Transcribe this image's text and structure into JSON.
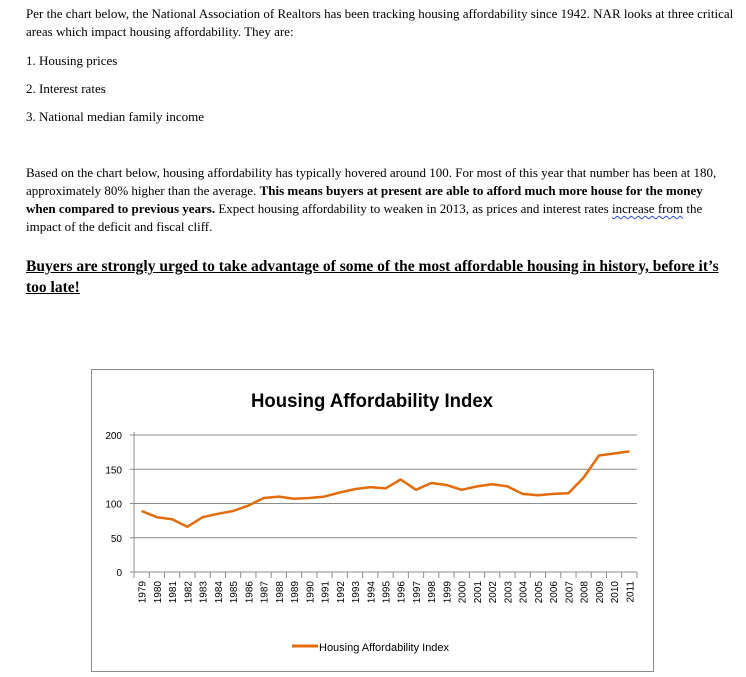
{
  "document": {
    "intro": "Per the chart below, the National Association of Realtors has been tracking housing affordability since 1942. NAR looks at three critical areas which impact housing affordability.  They are:",
    "list": [
      "1. Housing prices",
      "2. Interest rates",
      "3. National median family income"
    ],
    "para2_a": "Based on the chart below, housing affordability has typically hovered around 100.  For most of this year that number has been at 180, approximately 80% higher than the average.  ",
    "para2_bold": "This means buyers at present are able to afford much more house for the money when compared to previous years.",
    "para2_b": "  Expect housing affordability to weaken in 2013, as prices and interest rates ",
    "para2_squiggle": "increase  from",
    "para2_c": " the impact of the deficit and fiscal cliff.",
    "callout": "Buyers are strongly urged to take advantage of some of the most affordable housing in history, before it’s too late!"
  },
  "chart_data": {
    "type": "line",
    "title": "Housing Affordability Index",
    "categories": [
      "1979",
      "1980",
      "1981",
      "1982",
      "1983",
      "1984",
      "1985",
      "1986",
      "1987",
      "1988",
      "1989",
      "1990",
      "1991",
      "1992",
      "1993",
      "1994",
      "1995",
      "1996",
      "1997",
      "1998",
      "1999",
      "2000",
      "2001",
      "2002",
      "2003",
      "2004",
      "2005",
      "2006",
      "2007",
      "2008",
      "2009",
      "2010",
      "2011"
    ],
    "series": [
      {
        "name": "Housing Affordability Index",
        "values": [
          89,
          80,
          77,
          66,
          80,
          85,
          89,
          97,
          108,
          110,
          107,
          108,
          110,
          116,
          121,
          124,
          122,
          135,
          120,
          130,
          127,
          120,
          125,
          128,
          125,
          114,
          112,
          114,
          115,
          138,
          170,
          173,
          176
        ]
      }
    ],
    "ylim": [
      0,
      200
    ],
    "yticks": [
      "0",
      "50",
      "100",
      "150",
      "200"
    ],
    "grid": true,
    "legend": "bottom",
    "line_color": "#e36c0a"
  }
}
